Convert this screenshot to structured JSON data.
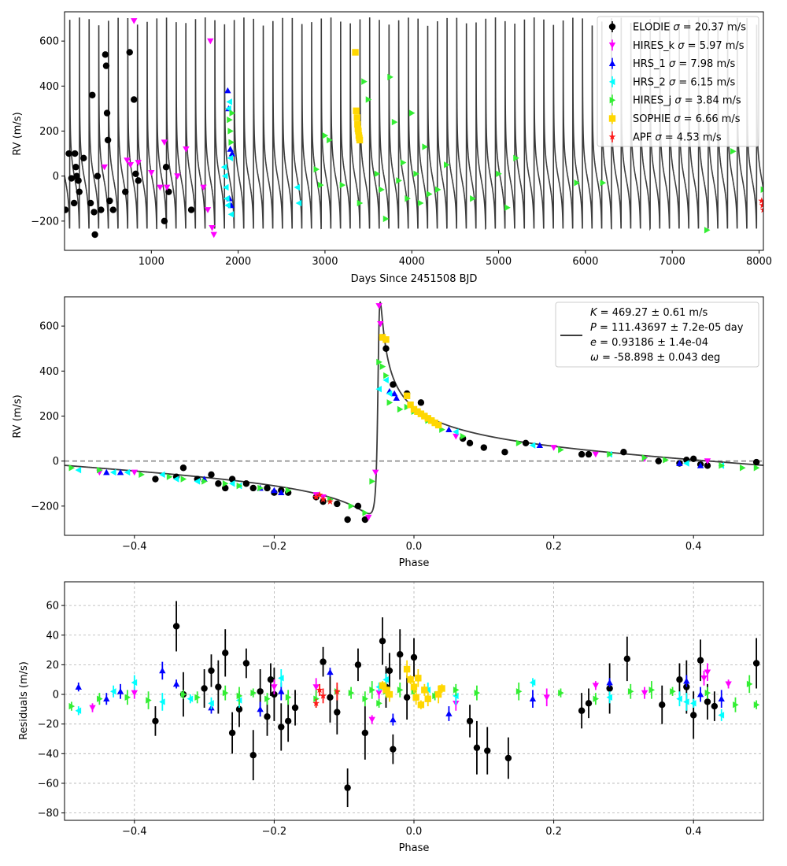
{
  "instruments": [
    {
      "name": "ELODIE",
      "sigma": "20.37 m/s",
      "color": "#000000",
      "marker": "circle"
    },
    {
      "name": "HIRES_k",
      "sigma": "5.97 m/s",
      "color": "#ff00ff",
      "marker": "triangle-down"
    },
    {
      "name": "HRS_1",
      "sigma": "7.98 m/s",
      "color": "#0000ff",
      "marker": "triangle-up"
    },
    {
      "name": "HRS_2",
      "sigma": "6.15 m/s",
      "color": "#00ffff",
      "marker": "triangle-left"
    },
    {
      "name": "HIRES_j",
      "sigma": "3.84 m/s",
      "color": "#33ee33",
      "marker": "triangle-right"
    },
    {
      "name": "SOPHIE",
      "sigma": "6.66 m/s",
      "color": "#ffd700",
      "marker": "square"
    },
    {
      "name": "APF",
      "sigma": "4.53 m/s",
      "color": "#ff1a1a",
      "marker": "star"
    }
  ],
  "fit_params": {
    "K": "469.27 ± 0.61 m/s",
    "P": "111.43697 ± 7.2e-05 day",
    "e": "0.93186 ± 1.4e-04",
    "omega": "-58.898 ± 0.043 deg"
  },
  "chart_data": [
    {
      "id": "time_series",
      "type": "scatter",
      "xlabel": "Days Since 2451508 BJD",
      "ylabel": "RV (m/s)",
      "xlim": [
        0,
        8050
      ],
      "ylim": [
        -330,
        730
      ],
      "xticks": [
        1000,
        2000,
        3000,
        4000,
        5000,
        6000,
        7000,
        8000
      ],
      "yticks": [
        -200,
        0,
        200,
        400,
        600
      ],
      "legend": "top-right",
      "grid": false,
      "model": {
        "K": 469.27,
        "P": 111.43697,
        "e": 0.93186,
        "omega_deg": -58.898,
        "offset": 10
      },
      "series": [
        {
          "name": "ELODIE",
          "x": [
            10,
            50,
            80,
            110,
            120,
            130,
            140,
            160,
            170,
            220,
            300,
            320,
            340,
            350,
            380,
            420,
            470,
            480,
            490,
            500,
            520,
            560,
            700,
            750,
            800,
            820,
            850,
            1150,
            1170,
            1200,
            1460
          ],
          "y": [
            -150,
            100,
            -10,
            -120,
            100,
            40,
            0,
            -20,
            -70,
            80,
            -120,
            360,
            -160,
            -260,
            0,
            -150,
            540,
            490,
            280,
            160,
            -110,
            -150,
            -70,
            550,
            340,
            10,
            -20,
            -200,
            40,
            -70,
            -150
          ]
        },
        {
          "name": "HIRES_k",
          "x": [
            460,
            720,
            760,
            800,
            850,
            1000,
            1100,
            1150,
            1180,
            1300,
            1400,
            1600,
            1650,
            1680,
            1700,
            1720
          ],
          "y": [
            40,
            70,
            50,
            690,
            60,
            15,
            -50,
            150,
            -50,
            0,
            120,
            -50,
            -150,
            600,
            -230,
            -260
          ]
        },
        {
          "name": "HRS_1",
          "x": [
            1880,
            1890,
            1900,
            1910,
            1920,
            1930
          ],
          "y": [
            380,
            300,
            -100,
            120,
            -130,
            100
          ]
        },
        {
          "name": "HRS_2",
          "x": [
            1840,
            1850,
            1860,
            1870,
            1880,
            1890,
            1900,
            1910,
            1920,
            2680,
            2700
          ],
          "y": [
            40,
            0,
            -50,
            -100,
            -130,
            300,
            330,
            80,
            -170,
            -50,
            -120
          ]
        },
        {
          "name": "HIRES_j",
          "x": [
            1900,
            1910,
            1920,
            1930,
            2900,
            2950,
            3000,
            3050,
            3200,
            3400,
            3450,
            3500,
            3600,
            3650,
            3700,
            3750,
            3800,
            3850,
            3900,
            3950,
            4000,
            4050,
            4100,
            4150,
            4200,
            4300,
            4400,
            4700,
            5000,
            5100,
            5200,
            5900,
            6200,
            7400,
            7700,
            8050
          ],
          "y": [
            250,
            200,
            150,
            280,
            30,
            -40,
            180,
            160,
            -40,
            -120,
            420,
            340,
            10,
            -60,
            -190,
            440,
            240,
            -20,
            60,
            -100,
            280,
            10,
            -120,
            130,
            -80,
            -60,
            50,
            -100,
            10,
            -140,
            80,
            -30,
            -30,
            -240,
            110,
            -60
          ]
        },
        {
          "name": "SOPHIE",
          "x": [
            3350,
            3360,
            3370,
            3375,
            3380,
            3385,
            3390,
            3395,
            3400
          ],
          "y": [
            550,
            290,
            260,
            230,
            210,
            200,
            180,
            170,
            160
          ]
        },
        {
          "name": "APF",
          "x": [
            8030,
            8040,
            8050
          ],
          "y": [
            -110,
            -130,
            -150
          ]
        }
      ]
    },
    {
      "id": "phased",
      "type": "scatter",
      "xlabel": "Phase",
      "ylabel": "RV (m/s)",
      "xlim": [
        -0.5,
        0.5
      ],
      "ylim": [
        -330,
        730
      ],
      "xticks": [
        -0.4,
        -0.2,
        0.0,
        0.2,
        0.4
      ],
      "yticks": [
        -200,
        0,
        200,
        400,
        600
      ],
      "legend": "top-right",
      "grid": false,
      "zero_line": 0,
      "model": {
        "K": 469.27,
        "e": 0.93186,
        "omega_deg": -58.898,
        "offset": 10
      },
      "series": [
        {
          "name": "ELODIE",
          "x": [
            -0.37,
            -0.34,
            -0.33,
            -0.31,
            -0.29,
            -0.28,
            -0.27,
            -0.26,
            -0.24,
            -0.23,
            -0.21,
            -0.2,
            -0.19,
            -0.18,
            -0.14,
            -0.13,
            -0.11,
            -0.095,
            -0.08,
            -0.07,
            -0.045,
            -0.04,
            -0.03,
            -0.01,
            0.01,
            0.07,
            0.08,
            0.1,
            0.13,
            0.16,
            0.24,
            0.25,
            0.3,
            0.35,
            0.38,
            0.39,
            0.4,
            0.41,
            0.42,
            0.49
          ],
          "y": [
            -80,
            -70,
            -30,
            -80,
            -60,
            -100,
            -120,
            -80,
            -100,
            -120,
            -120,
            -140,
            -130,
            -140,
            -160,
            -180,
            -190,
            -260,
            -200,
            -260,
            550,
            500,
            340,
            300,
            260,
            100,
            80,
            60,
            40,
            80,
            30,
            30,
            40,
            0,
            -10,
            5,
            10,
            -15,
            -20,
            -5
          ]
        },
        {
          "name": "HIRES_k",
          "x": [
            -0.45,
            -0.4,
            -0.14,
            -0.13,
            -0.065,
            -0.055,
            -0.05,
            -0.048,
            0.06,
            0.2,
            0.26,
            0.33,
            0.42
          ],
          "y": [
            -50,
            -50,
            -150,
            -160,
            -250,
            -50,
            690,
            610,
            110,
            60,
            30,
            10,
            0
          ]
        },
        {
          "name": "HRS_1",
          "x": [
            -0.44,
            -0.42,
            -0.3,
            -0.22,
            -0.2,
            -0.19,
            -0.035,
            -0.028,
            -0.025,
            0.05,
            0.18,
            0.38,
            0.41
          ],
          "y": [
            -50,
            -50,
            -80,
            -120,
            -130,
            -140,
            310,
            300,
            280,
            140,
            70,
            -10,
            -20
          ]
        },
        {
          "name": "HRS_2",
          "x": [
            -0.48,
            -0.43,
            -0.41,
            -0.36,
            -0.34,
            -0.31,
            -0.26,
            -0.25,
            -0.05,
            -0.04,
            -0.035,
            0.06,
            0.17,
            0.28,
            0.39,
            0.44
          ],
          "y": [
            -40,
            -50,
            -50,
            -60,
            -80,
            -90,
            -100,
            -110,
            320,
            360,
            300,
            130,
            70,
            30,
            -10,
            -20
          ]
        },
        {
          "name": "HIRES_j",
          "x": [
            -0.49,
            -0.45,
            -0.39,
            -0.35,
            -0.33,
            -0.3,
            -0.27,
            -0.25,
            -0.22,
            -0.18,
            -0.12,
            -0.09,
            -0.07,
            -0.06,
            -0.05,
            -0.045,
            -0.04,
            -0.035,
            -0.02,
            -0.01,
            0.0,
            0.02,
            0.04,
            0.07,
            0.15,
            0.21,
            0.28,
            0.33,
            0.36,
            0.44,
            0.47,
            0.49
          ],
          "y": [
            -30,
            -40,
            -60,
            -70,
            -80,
            -90,
            -100,
            -110,
            -120,
            -130,
            -170,
            -200,
            -230,
            -90,
            440,
            420,
            380,
            260,
            230,
            240,
            220,
            180,
            140,
            110,
            80,
            50,
            30,
            15,
            5,
            -20,
            -30,
            -30
          ]
        },
        {
          "name": "SOPHIE",
          "x": [
            -0.045,
            -0.04,
            -0.01,
            -0.005,
            0.0,
            0.005,
            0.01,
            0.015,
            0.02,
            0.025,
            0.03,
            0.035
          ],
          "y": [
            550,
            540,
            290,
            250,
            230,
            220,
            210,
            200,
            190,
            180,
            170,
            160
          ]
        },
        {
          "name": "APF",
          "x": [
            -0.14,
            -0.135,
            -0.13,
            -0.12
          ],
          "y": [
            -160,
            -150,
            -170,
            -180
          ]
        }
      ]
    },
    {
      "id": "residuals",
      "type": "scatter",
      "xlabel": "Phase",
      "ylabel": "Residuals (m/s)",
      "xlim": [
        -0.5,
        0.5
      ],
      "ylim": [
        -85,
        76
      ],
      "xticks": [
        -0.4,
        -0.2,
        0.0,
        0.2,
        0.4
      ],
      "yticks": [
        -80,
        -60,
        -40,
        -20,
        0,
        20,
        40,
        60
      ],
      "grid": true,
      "series": [
        {
          "name": "ELODIE",
          "x": [
            -0.37,
            -0.34,
            -0.33,
            -0.3,
            -0.29,
            -0.28,
            -0.27,
            -0.26,
            -0.25,
            -0.24,
            -0.23,
            -0.22,
            -0.21,
            -0.205,
            -0.2,
            -0.19,
            -0.18,
            -0.17,
            -0.13,
            -0.12,
            -0.11,
            -0.095,
            -0.08,
            -0.07,
            -0.045,
            -0.04,
            -0.035,
            -0.03,
            -0.02,
            -0.01,
            0.0,
            0.08,
            0.09,
            0.105,
            0.135,
            0.24,
            0.25,
            0.28,
            0.305,
            0.355,
            0.38,
            0.39,
            0.4,
            0.41,
            0.42,
            0.43,
            0.49
          ],
          "y": [
            -18,
            46,
            0,
            4,
            16,
            5,
            28,
            -26,
            -10,
            21,
            -41,
            2,
            -15,
            10,
            0,
            -22,
            -18,
            -9,
            22,
            -2,
            -12,
            -63,
            20,
            -26,
            36,
            5,
            16,
            -37,
            27,
            -2,
            25,
            -18,
            -36,
            -38,
            -43,
            -11,
            -6,
            4,
            24,
            -7,
            10,
            5,
            -14,
            23,
            -5,
            -8,
            21
          ]
        },
        {
          "name": "HIRES_k",
          "x": [
            -0.46,
            -0.4,
            -0.2,
            -0.14,
            -0.06,
            -0.05,
            0.06,
            0.19,
            0.26,
            0.33,
            0.415,
            0.42,
            0.45
          ],
          "y": [
            -9,
            1,
            5,
            5,
            -17,
            1,
            -6,
            -2,
            6,
            1,
            11,
            15,
            7
          ]
        },
        {
          "name": "HRS_1",
          "x": [
            -0.48,
            -0.44,
            -0.42,
            -0.36,
            -0.34,
            -0.29,
            -0.22,
            -0.19,
            -0.12,
            -0.03,
            0.05,
            0.17,
            0.28,
            0.39,
            0.41,
            0.44
          ],
          "y": [
            5,
            -3,
            2,
            16,
            7,
            -9,
            -10,
            2,
            15,
            -17,
            -13,
            -3,
            8,
            9,
            0,
            -3
          ]
        },
        {
          "name": "HRS_2",
          "x": [
            -0.48,
            -0.43,
            -0.4,
            -0.36,
            -0.32,
            -0.29,
            -0.25,
            -0.19,
            -0.05,
            -0.04,
            0.02,
            0.06,
            0.17,
            0.28,
            0.38,
            0.39,
            0.4,
            0.44
          ],
          "y": [
            -11,
            2,
            8,
            -5,
            -3,
            -6,
            -4,
            11,
            5,
            10,
            3,
            -1,
            8,
            -2,
            -3,
            -5,
            -6,
            -14
          ]
        },
        {
          "name": "HIRES_j",
          "x": [
            -0.49,
            -0.45,
            -0.41,
            -0.38,
            -0.33,
            -0.31,
            -0.27,
            -0.25,
            -0.23,
            -0.21,
            -0.18,
            -0.14,
            -0.11,
            -0.09,
            -0.07,
            -0.06,
            -0.05,
            -0.04,
            -0.02,
            0.0,
            0.03,
            0.06,
            0.09,
            0.15,
            0.21,
            0.26,
            0.31,
            0.34,
            0.37,
            0.42,
            0.46,
            0.48,
            0.49
          ],
          "y": [
            -8,
            -3,
            -2,
            -4,
            0,
            -2,
            1,
            -1,
            1,
            -3,
            -2,
            -3,
            2,
            1,
            -3,
            3,
            -6,
            2,
            3,
            2,
            -1,
            3,
            1,
            2,
            1,
            -3,
            2,
            3,
            2,
            1,
            -7,
            7,
            -7
          ]
        },
        {
          "name": "SOPHIE",
          "x": [
            -0.045,
            -0.04,
            -0.035,
            -0.01,
            -0.005,
            0.0,
            0.003,
            0.006,
            0.01,
            0.015,
            0.02,
            0.035,
            0.04
          ],
          "y": [
            6,
            3,
            0,
            17,
            10,
            5,
            -2,
            11,
            -7,
            3,
            -3,
            0,
            4
          ]
        },
        {
          "name": "APF",
          "x": [
            -0.14,
            -0.135,
            -0.13,
            -0.11
          ],
          "y": [
            -6,
            3,
            -1,
            2
          ]
        }
      ]
    }
  ]
}
